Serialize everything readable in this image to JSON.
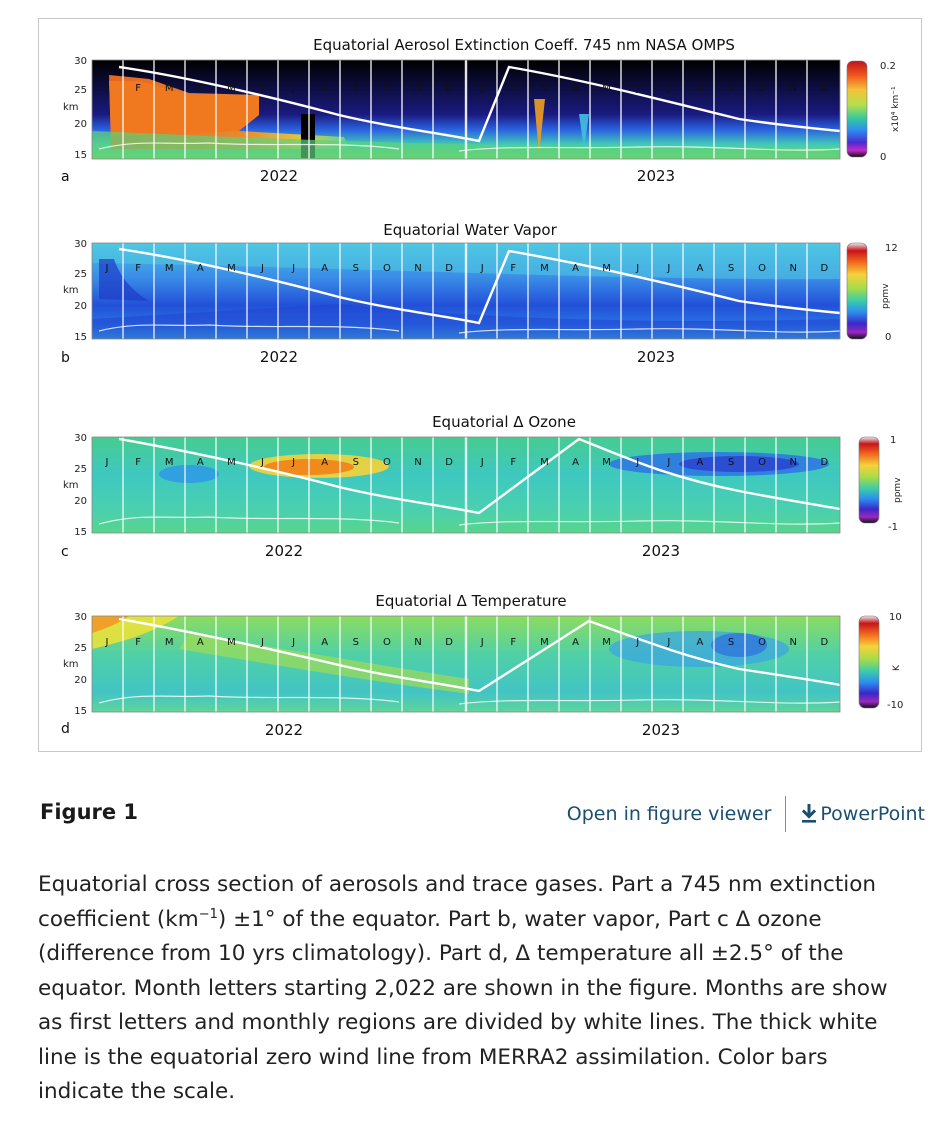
{
  "figure": {
    "units": {
      "km": "km",
      "y_ticks": [
        "30",
        "25",
        "20",
        "15"
      ],
      "months": [
        "J",
        "F",
        "M",
        "A",
        "M",
        "J",
        "J",
        "A",
        "S",
        "O",
        "N",
        "D"
      ],
      "years": [
        "2022",
        "2023"
      ]
    },
    "panels": [
      {
        "letter": "a",
        "title": "Equatorial Aerosol Extinction Coeff.  745 nm NASA OMPS",
        "cb_max": "0.2",
        "cb_min": "0",
        "cb_unit": "x10⁴ km⁻¹",
        "colors": {
          "bg": "#000000",
          "accent": "#f07d1e"
        }
      },
      {
        "letter": "b",
        "title": "Equatorial Water Vapor",
        "cb_max": "12",
        "cb_min": "0",
        "cb_unit": "ppmv",
        "colors": {
          "bg": "#2255d8",
          "accent": "#46b8e8"
        }
      },
      {
        "letter": "c",
        "title": "Equatorial Δ Ozone",
        "cb_max": "1",
        "cb_min": "-1",
        "cb_unit": "ppmv",
        "colors": {
          "bg": "#4cd2b4",
          "accent": "#f08a1c"
        }
      },
      {
        "letter": "d",
        "title": "Equatorial Δ Temperature",
        "cb_max": "10",
        "cb_min": "-10",
        "cb_unit": "K",
        "colors": {
          "bg": "#52d2a8",
          "accent": "#d8e23c"
        }
      }
    ]
  },
  "figure_label": "Figure 1",
  "actions": {
    "viewer": "Open in figure viewer",
    "powerpoint": "PowerPoint",
    "powerpoint_icon": "download-icon"
  },
  "caption": {
    "part1": "Equatorial cross section of aerosols and trace gases. Part a 745 nm extinction coefficient (km",
    "sup": "−1",
    "part2": ") ±1° of the equator. Part b, water vapor, Part c Δ ozone (difference from 10 yrs climatology). Part d, Δ temperature all ±2.5° of the equator. Month letters starting 2,022 are shown in the figure. Months are show as first letters and monthly regions are divided by white lines. The thick white line is the equatorial zero wind line from MERRA2 assimilation. Color bars indicate the scale."
  }
}
